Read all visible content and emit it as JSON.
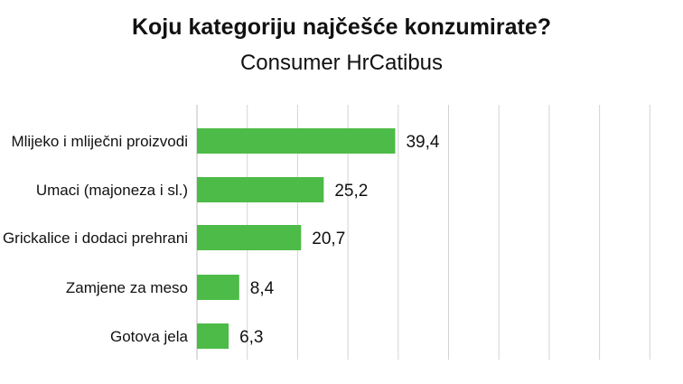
{
  "chart_data": {
    "type": "bar",
    "orientation": "horizontal",
    "title": "Koju kategoriju najčešće konzumirate?",
    "subtitle": "Consumer HrCatibus",
    "categories": [
      "Mlijeko i mliječni proizvodi",
      "Umaci (majoneza i sl.)",
      "Grickalice i dodaci prehrani",
      "Zamjene za meso",
      "Gotova jela"
    ],
    "values": [
      39.4,
      25.2,
      20.7,
      8.4,
      6.3
    ],
    "value_labels": [
      "39,4",
      "25,2",
      "20,7",
      "8,4",
      "6,3"
    ],
    "xlim": [
      0,
      100
    ],
    "grid": true,
    "bar_color": "#4dbb47",
    "grid_color": "#d3d3d3"
  }
}
